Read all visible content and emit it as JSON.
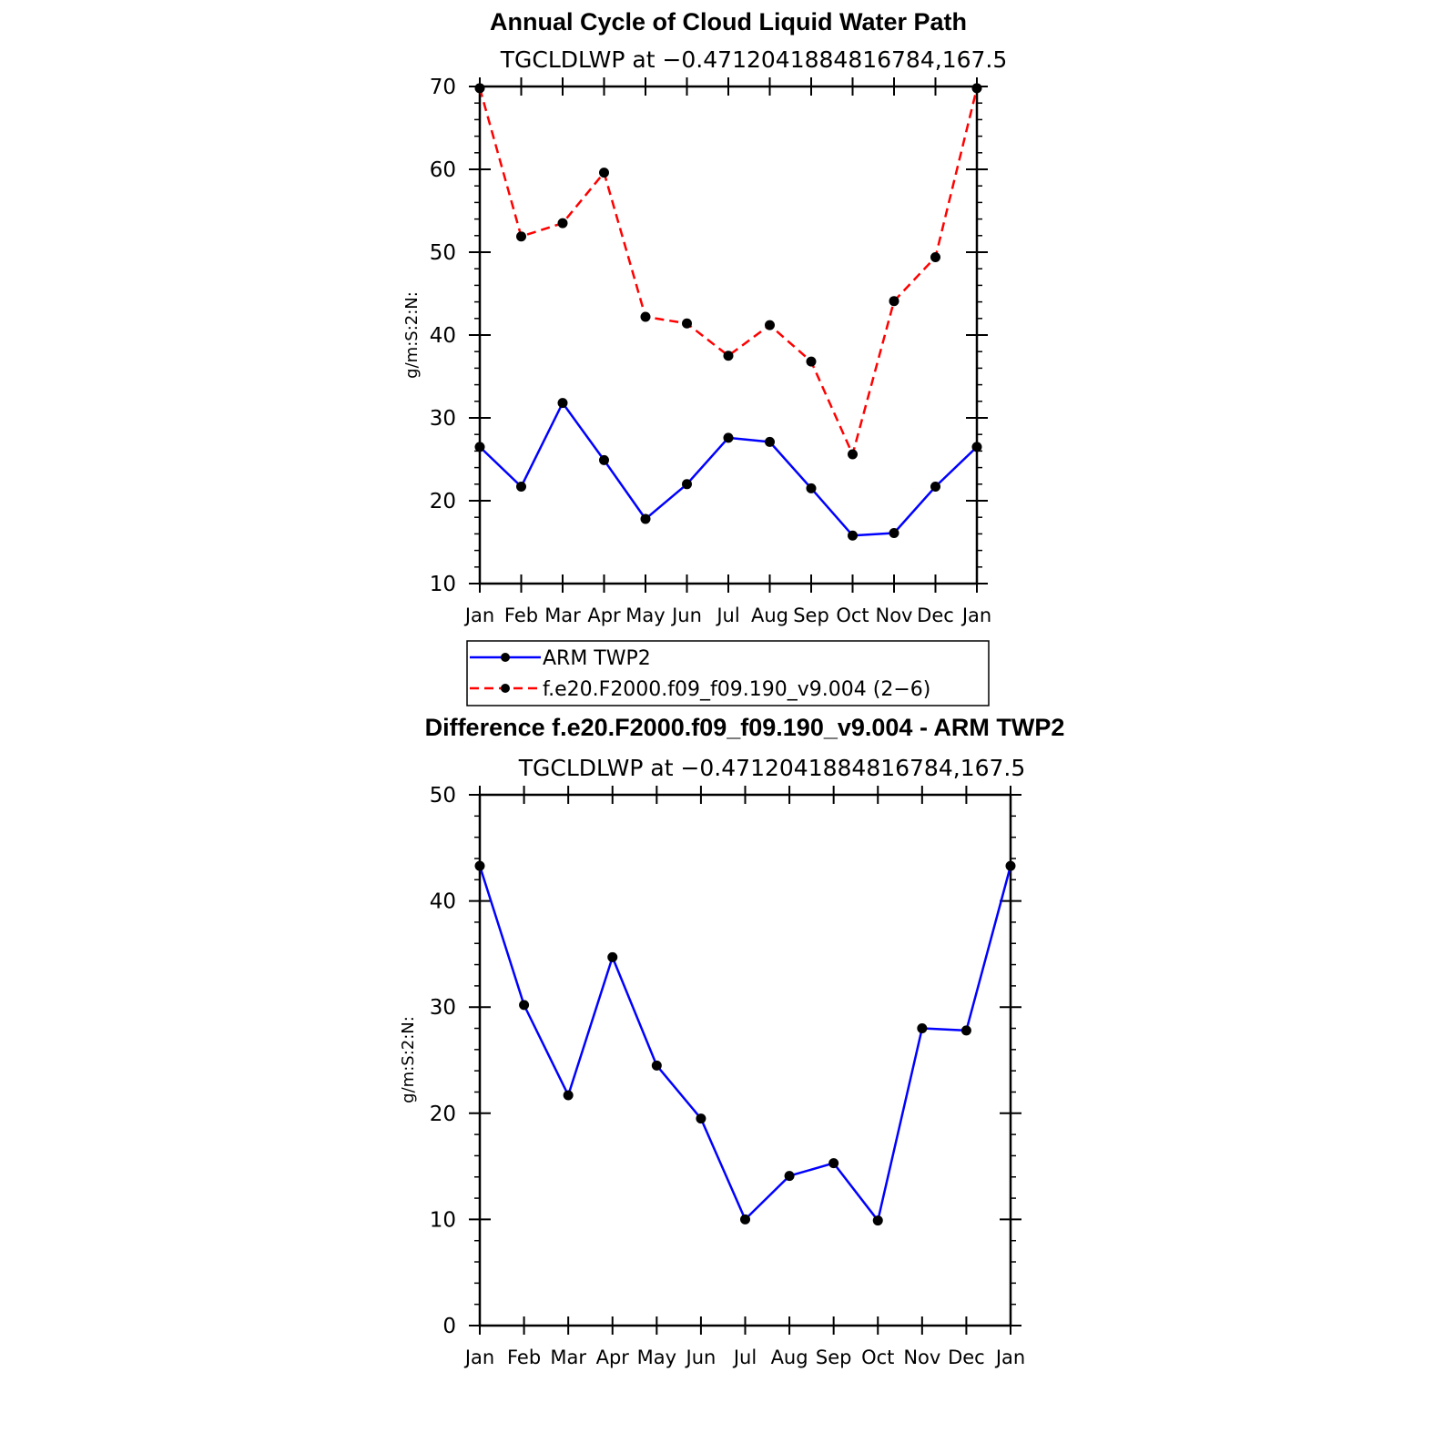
{
  "chart_data": [
    {
      "type": "line",
      "title": "Annual Cycle of Cloud Liquid Water Path",
      "subtitle": "TGCLDLWP at −0.4712041884816784,167.5",
      "xlabel": "",
      "ylabel": "g/m:S:2:N:",
      "categories": [
        "Jan",
        "Feb",
        "Mar",
        "Apr",
        "May",
        "Jun",
        "Jul",
        "Aug",
        "Sep",
        "Oct",
        "Nov",
        "Dec",
        "Jan"
      ],
      "ylim": [
        10,
        70
      ],
      "yticks": [
        "10",
        "20",
        "30",
        "40",
        "50",
        "60",
        "70"
      ],
      "series": [
        {
          "name": "ARM TWP2",
          "color": "#0000ff",
          "dash": "solid",
          "values": [
            26.5,
            21.7,
            31.8,
            24.9,
            17.8,
            22.0,
            27.6,
            27.1,
            21.5,
            15.8,
            16.1,
            21.7,
            26.5
          ]
        },
        {
          "name": "f.e20.F2000.f09_f09.190_v9.004 (2−6)",
          "color": "#ff0000",
          "dash": "dashed",
          "values": [
            69.8,
            51.9,
            53.5,
            59.6,
            42.2,
            41.4,
            37.5,
            41.2,
            36.8,
            25.6,
            44.1,
            49.4,
            69.8
          ]
        }
      ]
    },
    {
      "type": "line",
      "title": "Difference f.e20.F2000.f09_f09.190_v9.004 - ARM TWP2",
      "subtitle": "TGCLDLWP at −0.4712041884816784,167.5",
      "xlabel": "",
      "ylabel": "g/m:S:2:N:",
      "categories": [
        "Jan",
        "Feb",
        "Mar",
        "Apr",
        "May",
        "Jun",
        "Jul",
        "Aug",
        "Sep",
        "Oct",
        "Nov",
        "Dec",
        "Jan"
      ],
      "ylim": [
        0,
        50
      ],
      "yticks": [
        "0",
        "10",
        "20",
        "30",
        "40",
        "50"
      ],
      "series": [
        {
          "name": "Difference",
          "color": "#0000ff",
          "dash": "solid",
          "values": [
            43.3,
            30.2,
            21.7,
            34.7,
            24.5,
            19.5,
            10.0,
            14.1,
            15.3,
            9.9,
            28.0,
            27.8,
            43.3
          ]
        }
      ]
    }
  ]
}
